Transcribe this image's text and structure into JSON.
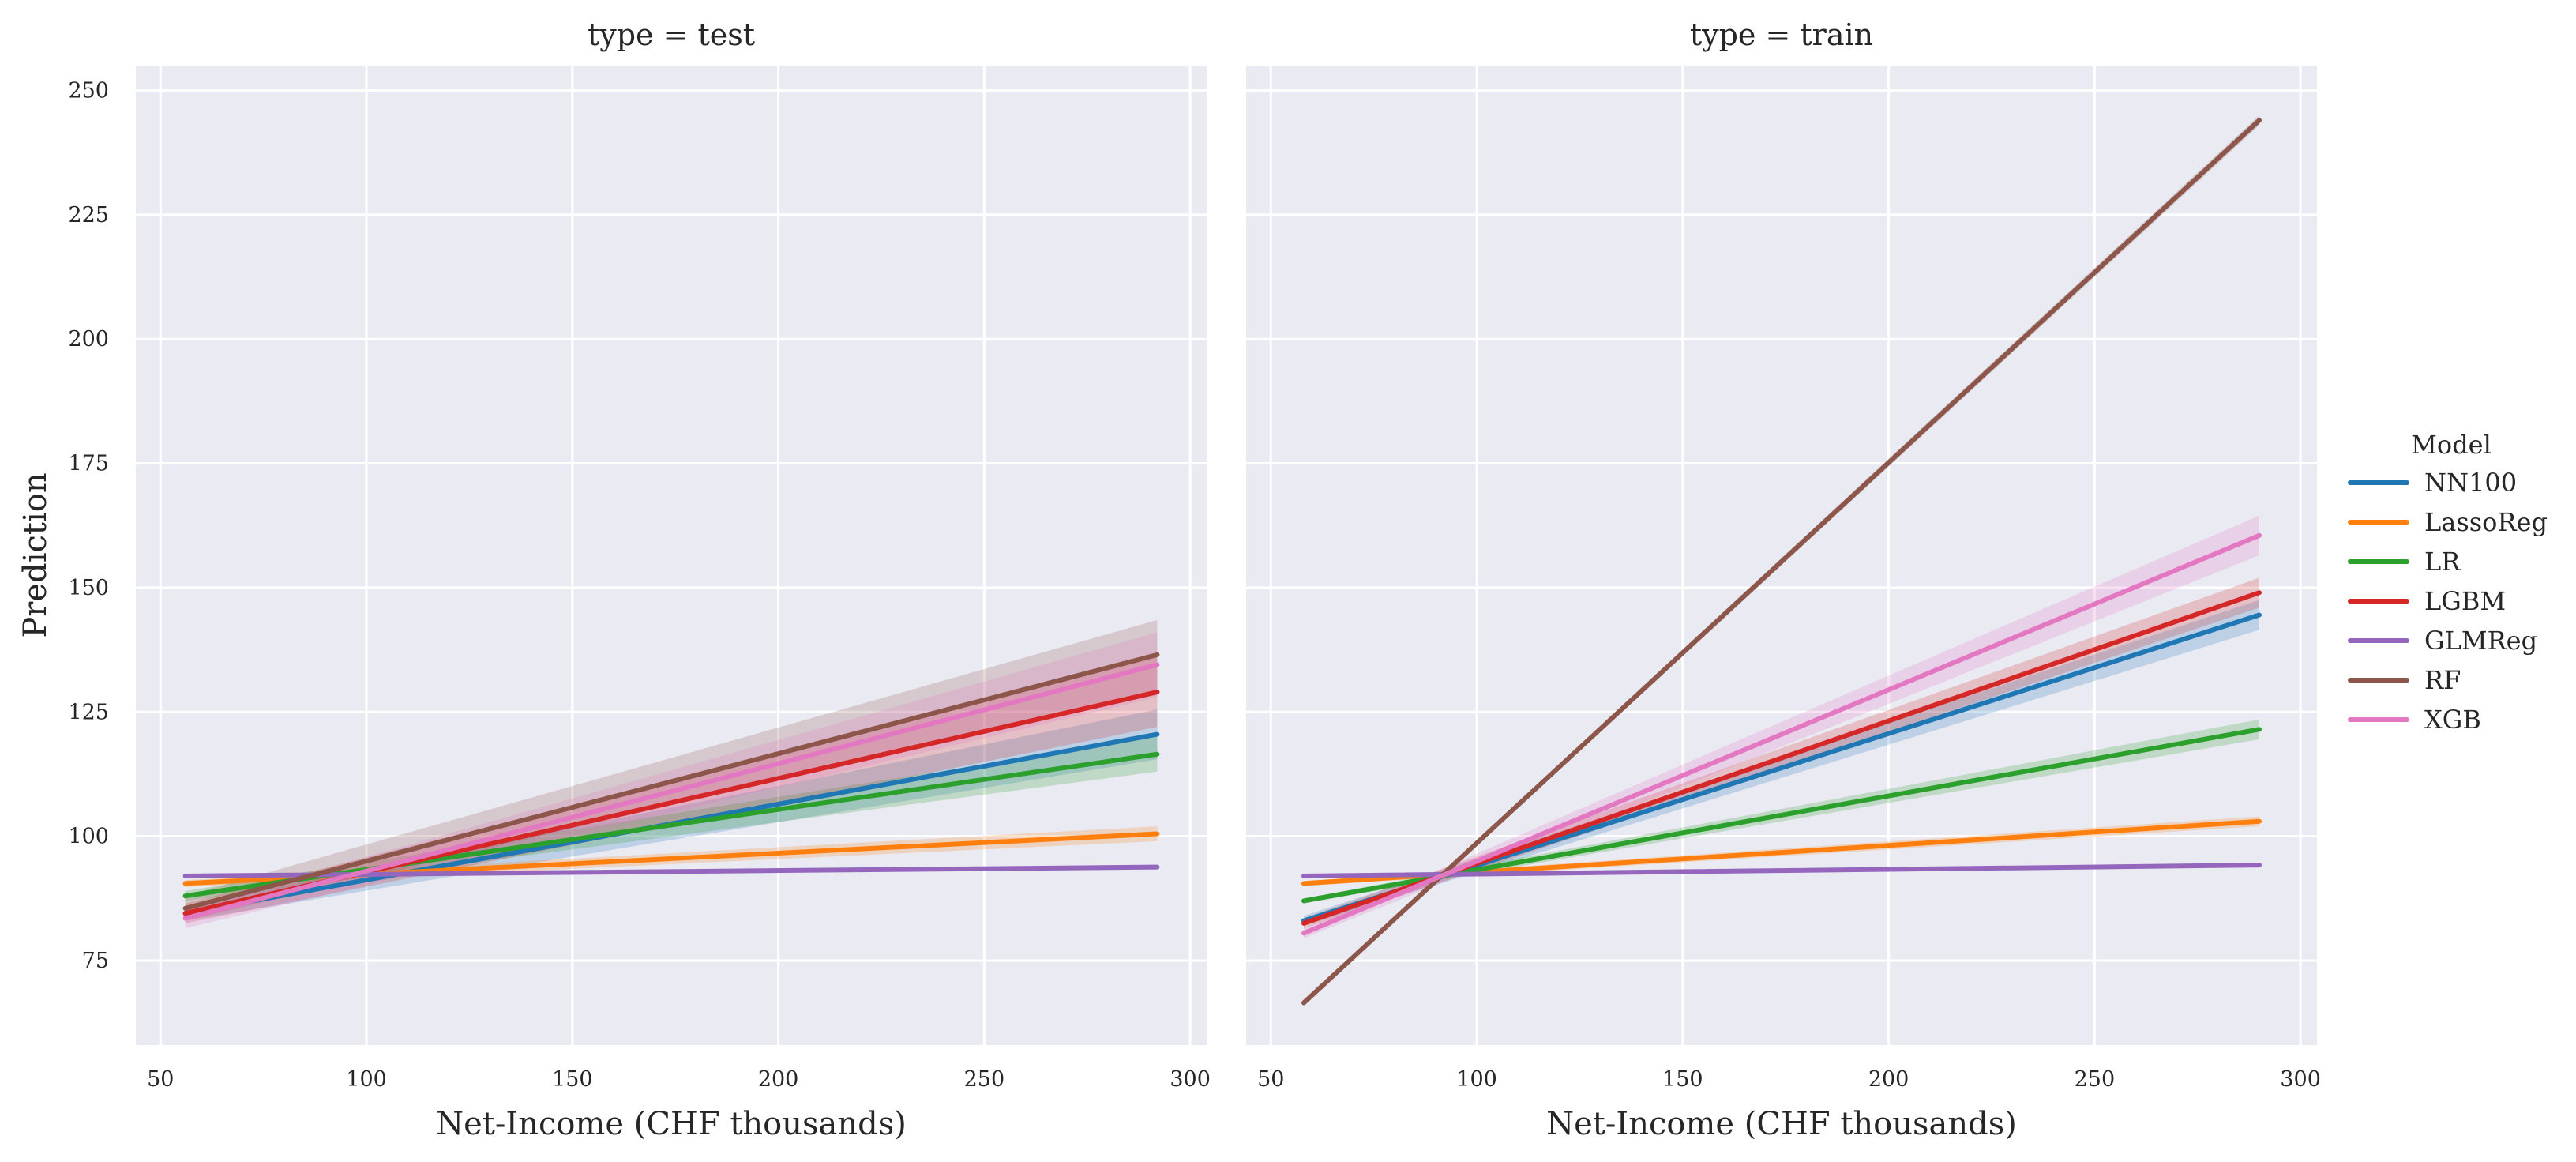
{
  "chart_data": [
    {
      "type": "line",
      "facet_title": "type = test",
      "xlabel": "Net-Income (CHF thousands)",
      "ylabel": "Prediction",
      "xlim": [
        44,
        304
      ],
      "ylim": [
        58,
        255
      ],
      "xticks": [
        50,
        100,
        150,
        200,
        250,
        300
      ],
      "yticks": [
        75,
        100,
        125,
        150,
        175,
        200,
        225,
        250
      ],
      "grid": true,
      "series": [
        {
          "name": "NN100",
          "color": "#1f77b4",
          "x": [
            56,
            292
          ],
          "y": [
            84.5,
            120.5
          ],
          "ci_low": [
            83.0,
            115.5
          ],
          "ci_high": [
            86.0,
            125.5
          ]
        },
        {
          "name": "LassoReg",
          "color": "#ff7f0e",
          "x": [
            56,
            292
          ],
          "y": [
            90.5,
            100.5
          ],
          "ci_low": [
            89.8,
            99.0
          ],
          "ci_high": [
            91.2,
            102.0
          ]
        },
        {
          "name": "LR",
          "color": "#2ca02c",
          "x": [
            56,
            292
          ],
          "y": [
            88.0,
            116.5
          ],
          "ci_low": [
            87.0,
            113.0
          ],
          "ci_high": [
            89.0,
            120.0
          ]
        },
        {
          "name": "LGBM",
          "color": "#d62728",
          "x": [
            56,
            292
          ],
          "y": [
            84.5,
            129.0
          ],
          "ci_low": [
            82.5,
            122.0
          ],
          "ci_high": [
            86.5,
            136.0
          ]
        },
        {
          "name": "GLMReg",
          "color": "#9467bd",
          "x": [
            56,
            292
          ],
          "y": [
            92.0,
            93.8
          ],
          "ci_low": [
            91.7,
            93.3
          ],
          "ci_high": [
            92.3,
            94.3
          ]
        },
        {
          "name": "RF",
          "color": "#8c564b",
          "x": [
            56,
            292
          ],
          "y": [
            85.5,
            136.5
          ],
          "ci_low": [
            83.0,
            129.5
          ],
          "ci_high": [
            88.0,
            143.5
          ]
        },
        {
          "name": "XGB",
          "color": "#e377c2",
          "x": [
            56,
            292
          ],
          "y": [
            83.5,
            134.5
          ],
          "ci_low": [
            81.5,
            128.0
          ],
          "ci_high": [
            85.5,
            141.0
          ]
        }
      ]
    },
    {
      "type": "line",
      "facet_title": "type = train",
      "xlabel": "Net-Income (CHF thousands)",
      "ylabel": "",
      "xlim": [
        44,
        304
      ],
      "ylim": [
        58,
        255
      ],
      "xticks": [
        50,
        100,
        150,
        200,
        250,
        300
      ],
      "yticks": [
        75,
        100,
        125,
        150,
        175,
        200,
        225,
        250
      ],
      "grid": true,
      "series": [
        {
          "name": "NN100",
          "color": "#1f77b4",
          "x": [
            58,
            290
          ],
          "y": [
            83.0,
            144.5
          ],
          "ci_low": [
            82.0,
            141.5
          ],
          "ci_high": [
            84.0,
            147.5
          ]
        },
        {
          "name": "LassoReg",
          "color": "#ff7f0e",
          "x": [
            58,
            290
          ],
          "y": [
            90.5,
            103.0
          ],
          "ci_low": [
            90.0,
            102.0
          ],
          "ci_high": [
            91.0,
            104.0
          ]
        },
        {
          "name": "LR",
          "color": "#2ca02c",
          "x": [
            58,
            290
          ],
          "y": [
            87.0,
            121.5
          ],
          "ci_low": [
            86.5,
            119.5
          ],
          "ci_high": [
            87.5,
            123.5
          ]
        },
        {
          "name": "LGBM",
          "color": "#d62728",
          "x": [
            58,
            290
          ],
          "y": [
            82.5,
            149.0
          ],
          "ci_low": [
            81.5,
            146.0
          ],
          "ci_high": [
            83.5,
            152.0
          ]
        },
        {
          "name": "GLMReg",
          "color": "#9467bd",
          "x": [
            58,
            290
          ],
          "y": [
            92.0,
            94.2
          ],
          "ci_low": [
            91.8,
            93.8
          ],
          "ci_high": [
            92.2,
            94.6
          ]
        },
        {
          "name": "RF",
          "color": "#8c564b",
          "x": [
            58,
            290
          ],
          "y": [
            66.5,
            244.0
          ],
          "ci_low": [
            66.0,
            243.0
          ],
          "ci_high": [
            67.0,
            245.0
          ]
        },
        {
          "name": "XGB",
          "color": "#e377c2",
          "x": [
            58,
            290
          ],
          "y": [
            80.5,
            160.5
          ],
          "ci_low": [
            79.5,
            156.5
          ],
          "ci_high": [
            81.5,
            164.5
          ]
        }
      ]
    }
  ],
  "legend": {
    "title": "Model",
    "placement": "right",
    "items": [
      {
        "label": "NN100",
        "color": "#1f77b4"
      },
      {
        "label": "LassoReg",
        "color": "#ff7f0e"
      },
      {
        "label": "LR",
        "color": "#2ca02c"
      },
      {
        "label": "LGBM",
        "color": "#d62728"
      },
      {
        "label": "GLMReg",
        "color": "#9467bd"
      },
      {
        "label": "RF",
        "color": "#8c564b"
      },
      {
        "label": "XGB",
        "color": "#e377c2"
      }
    ]
  }
}
